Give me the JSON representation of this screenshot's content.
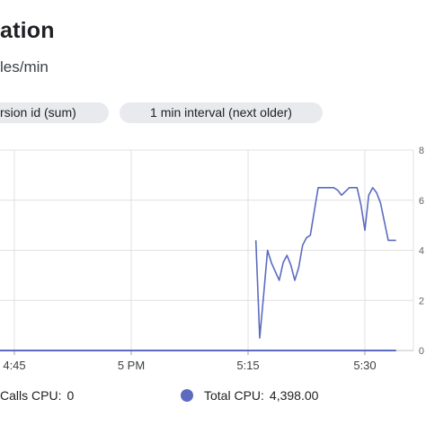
{
  "header": {
    "title": "ation",
    "subtitle": "les/min"
  },
  "chips": {
    "aggregation": "rsion id (sum)",
    "interval": "1 min interval (next older)"
  },
  "chart_data": {
    "type": "line",
    "x_ticks": [
      "4:45",
      "5 PM",
      "5:15",
      "5:30"
    ],
    "y_ticks_right": [
      "8",
      "6",
      "4",
      "2",
      "0"
    ],
    "ylim": [
      0,
      8
    ],
    "series": [
      {
        "name": "Total CPU",
        "color": "#5c6bc0",
        "x": [
          "5:16",
          "5:16.5",
          "5:17",
          "5:17.5",
          "5:18",
          "5:19",
          "5:19.5",
          "5:20",
          "5:20.5",
          "5:21",
          "5:21.5",
          "5:22",
          "5:22.5",
          "5:23",
          "5:24",
          "5:25",
          "5:26",
          "5:26.5",
          "5:27",
          "5:28",
          "5:29",
          "5:29.5",
          "5:30",
          "5:30.5",
          "5:31",
          "5:31.5",
          "5:32",
          "5:33",
          "5:34"
        ],
        "values": [
          4.4,
          0.5,
          2.2,
          4.0,
          3.5,
          2.8,
          3.5,
          3.8,
          3.4,
          2.8,
          3.3,
          4.2,
          4.5,
          4.6,
          6.5,
          6.5,
          6.5,
          6.4,
          6.2,
          6.5,
          6.5,
          5.8,
          4.8,
          6.2,
          6.5,
          6.3,
          5.9,
          4.4,
          4.4
        ]
      },
      {
        "name": "Calls CPU",
        "color": "#5c6bc0",
        "x": [
          "4:42",
          "5:34"
        ],
        "values": [
          0,
          0
        ]
      }
    ]
  },
  "legend": [
    {
      "label": "Calls CPU:",
      "value": "0"
    },
    {
      "label": "Total CPU:",
      "value": "4,398.00"
    }
  ]
}
